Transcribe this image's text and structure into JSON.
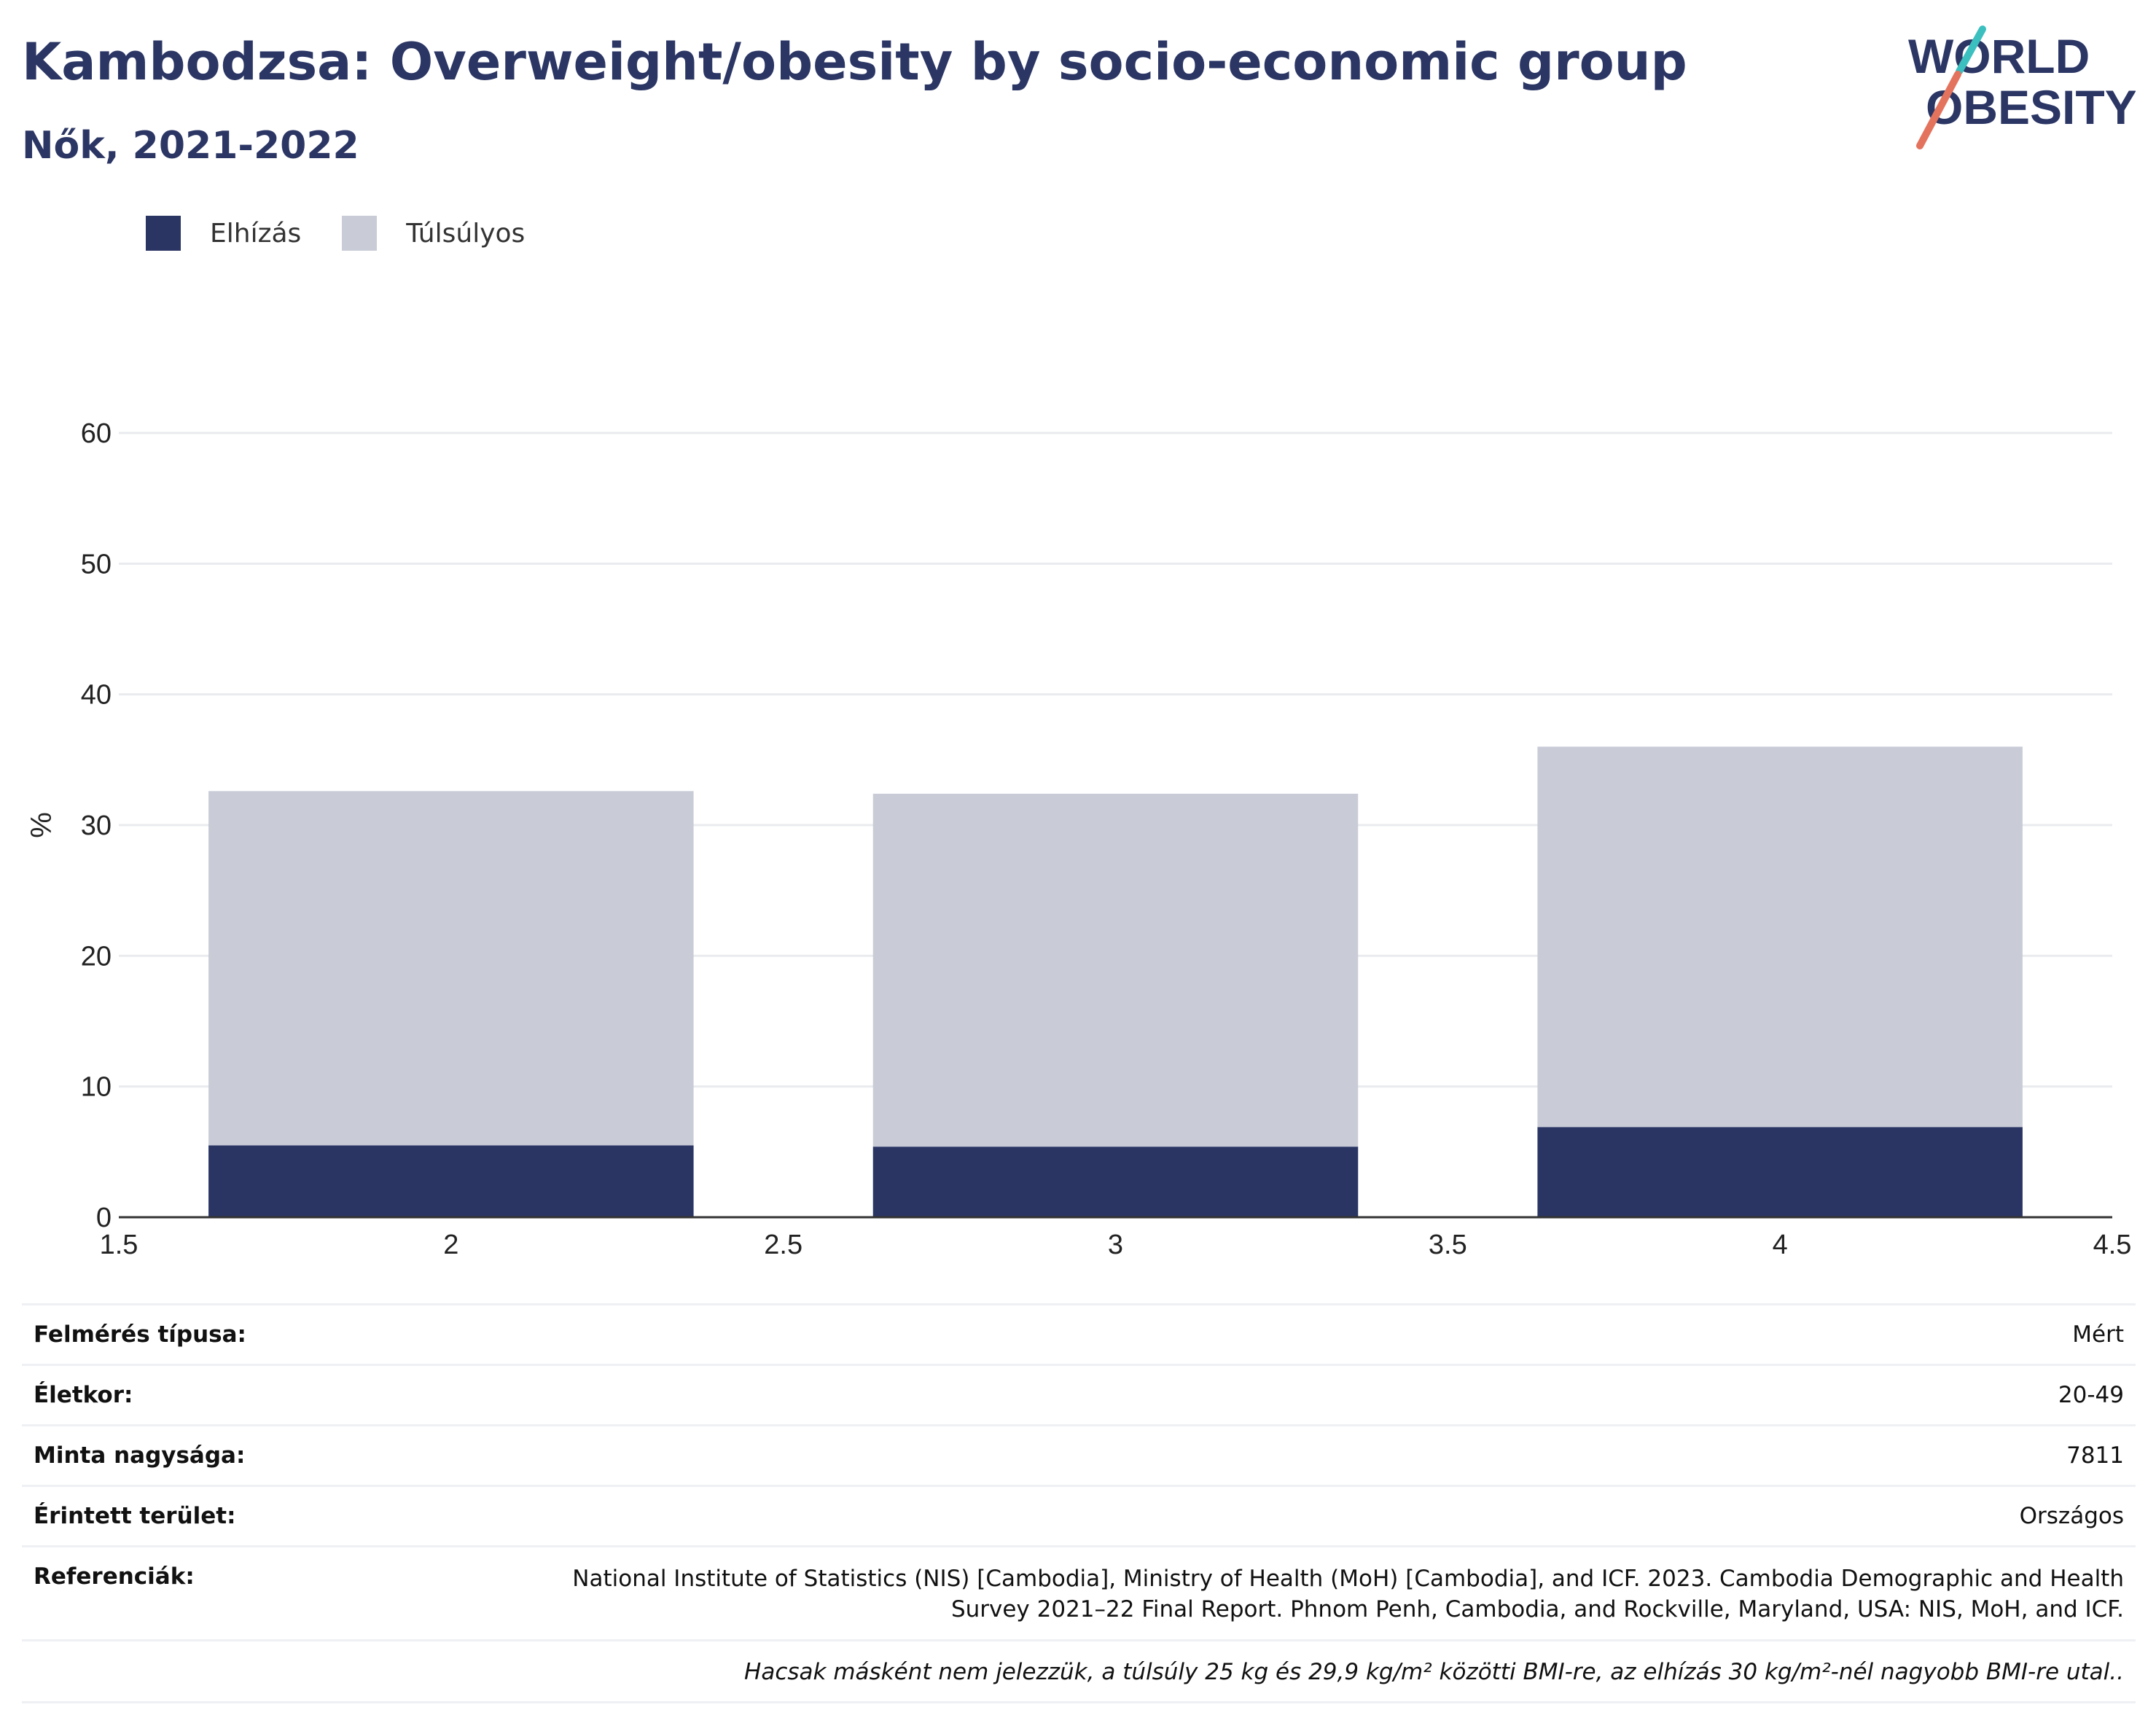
{
  "header": {
    "title": "Kambodzsa: Overweight/obesity by socio-economic group",
    "subtitle": "Nők, 2021-2022"
  },
  "logo": {
    "line1": "WORLD",
    "line2": "OBESITY"
  },
  "legend": [
    {
      "label": "Elhízás",
      "color": "#2a3564"
    },
    {
      "label": "Túlsúlyos",
      "color": "#c9ccd7"
    }
  ],
  "chart_data": {
    "type": "bar",
    "stacked": true,
    "x": [
      2,
      3,
      4
    ],
    "bar_width": 0.73,
    "xlim": [
      1.5,
      4.5
    ],
    "ylim": [
      0,
      60
    ],
    "xticks": [
      "1.5",
      "2",
      "2.5",
      "3",
      "3.5",
      "4",
      "4.5"
    ],
    "yticks": [
      "0",
      "10",
      "20",
      "30",
      "40",
      "50",
      "60"
    ],
    "ylabel": "%",
    "grid": true,
    "legend_position": "top-left",
    "series": [
      {
        "name": "Elhízás",
        "color": "#2a3564",
        "values": [
          5.5,
          5.4,
          6.9
        ]
      },
      {
        "name": "Túlsúlyos",
        "color": "#c9ccd7",
        "values": [
          27.1,
          27.0,
          29.1
        ]
      }
    ]
  },
  "info": {
    "survey_type": {
      "label": "Felmérés típusa:",
      "value": "Mért"
    },
    "age": {
      "label": "Életkor:",
      "value": "20-49"
    },
    "sample": {
      "label": "Minta nagysága:",
      "value": "7811"
    },
    "area": {
      "label": "Érintett terület:",
      "value": "Országos"
    },
    "references": {
      "label": "Referenciák:",
      "value": "National Institute of Statistics (NIS) [Cambodia], Ministry of Health (MoH) [Cambodia], and ICF. 2023. Cambodia Demographic and Health Survey 2021–22 Final Report. Phnom Penh, Cambodia, and Rockville, Maryland, USA: NIS, MoH, and ICF."
    },
    "note": "Hacsak másként nem jelezzük, a túlsúly 25 kg és 29,9 kg/m² közötti BMI-re, az elhízás 30 kg/m²-nél nagyobb BMI-re utal.."
  }
}
